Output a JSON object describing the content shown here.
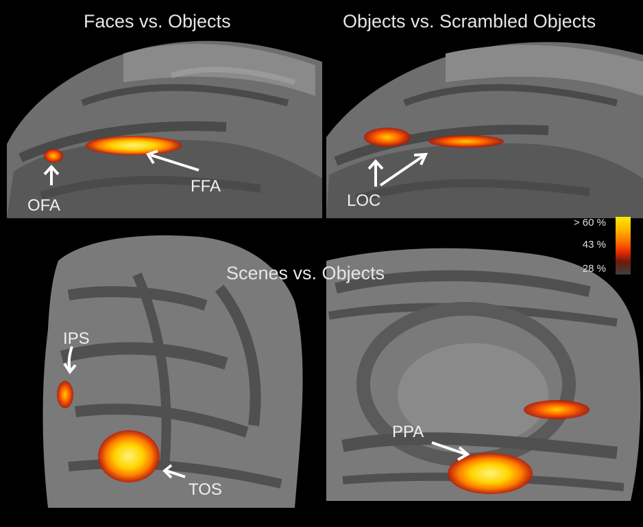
{
  "panels": {
    "top_left": {
      "title": "Faces vs. Objects",
      "labels": {
        "ofa": "OFA",
        "ffa": "FFA"
      }
    },
    "top_right": {
      "title": "Objects vs. Scrambled Objects",
      "labels": {
        "loc": "LOC"
      }
    },
    "bottom": {
      "title": "Scenes vs. Objects",
      "labels": {
        "ips": "IPS",
        "tos": "TOS",
        "ppa": "PPA"
      }
    }
  },
  "colorbar": {
    "ticks": [
      "> 60 %",
      "43 %",
      "28 %"
    ],
    "colors": [
      "#ffe800",
      "#ff6a00",
      "#404040"
    ]
  },
  "palette": {
    "background": "#000000",
    "cortex_gyrus": "#808080",
    "cortex_sulcus": "#4a4a4a",
    "activation_hot": "#ffe800",
    "activation_warm": "#e02a00"
  }
}
